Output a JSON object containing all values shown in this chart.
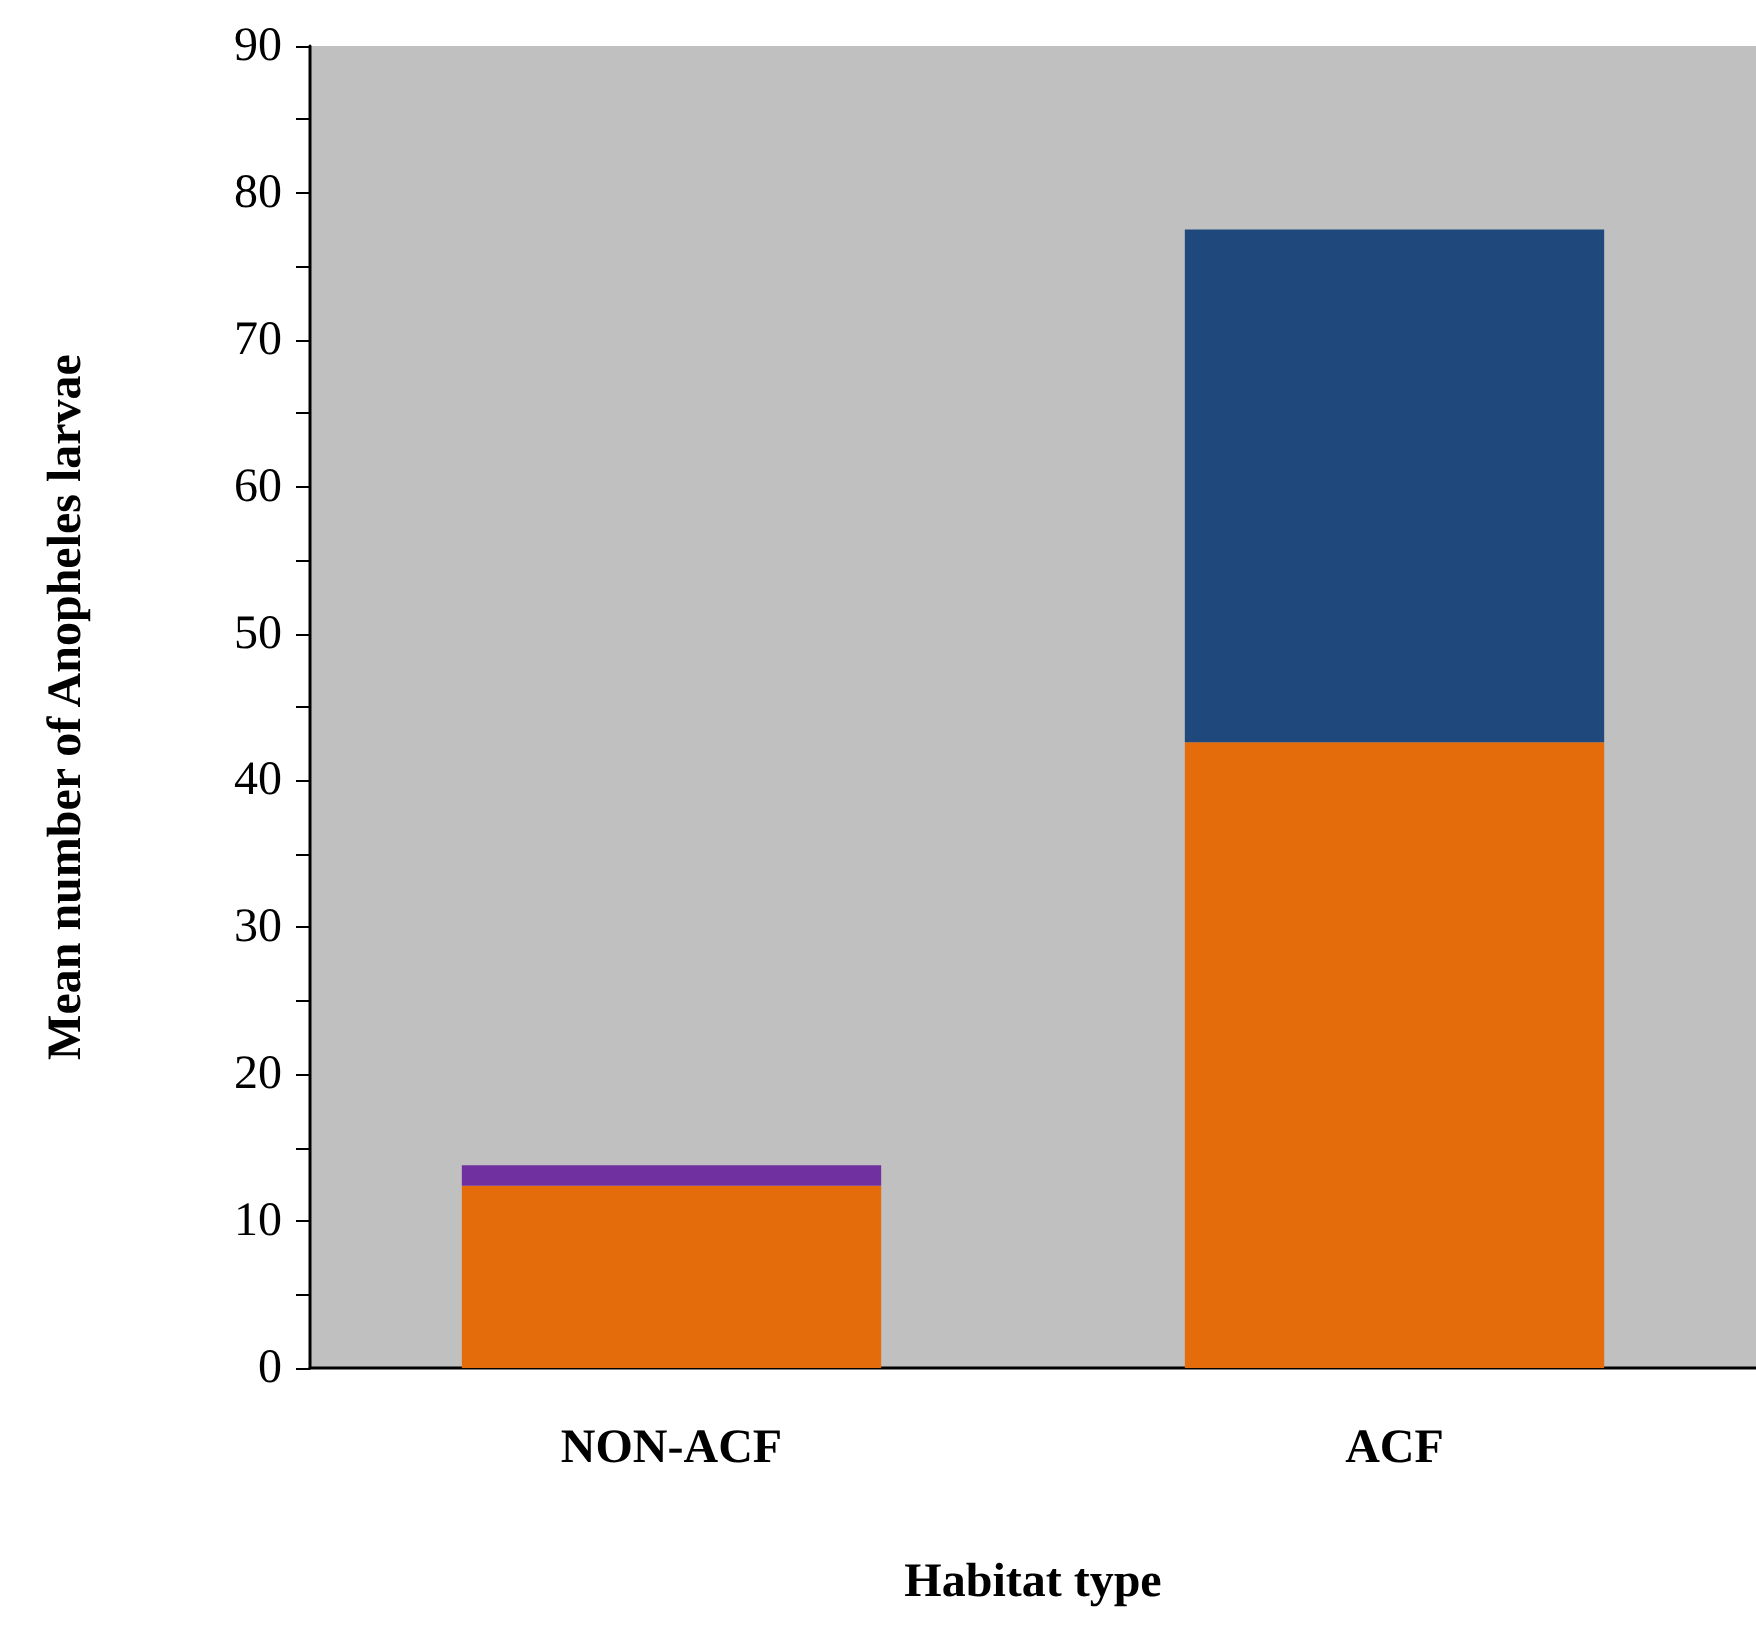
{
  "chart_data": {
    "type": "bar",
    "xlabel": "Habitat type",
    "ylabel": "Mean number of Anopheles larvae",
    "categories": [
      "NON-ACF",
      "ACF"
    ],
    "stacked": true,
    "series": [
      {
        "color": "#e46c0a",
        "values": [
          12.4,
          42.6
        ]
      },
      {
        "color": "#7030a0",
        "values": [
          1.4,
          0
        ]
      },
      {
        "color": "#1f497d",
        "values": [
          0,
          34.9
        ]
      }
    ],
    "ylim": [
      0,
      90
    ],
    "yticks": [
      0,
      {
        "value": 5,
        "label": null
      },
      10,
      {
        "value": 15,
        "label": null
      },
      20,
      {
        "value": 25,
        "label": null
      },
      30,
      {
        "value": 35,
        "label": null
      },
      40,
      {
        "value": 45,
        "label": null
      },
      50,
      {
        "value": 55,
        "label": null
      },
      60,
      {
        "value": 65,
        "label": null
      },
      70,
      {
        "value": 75,
        "label": null
      },
      80,
      {
        "value": 85,
        "label": null
      },
      90
    ],
    "grid": false
  }
}
